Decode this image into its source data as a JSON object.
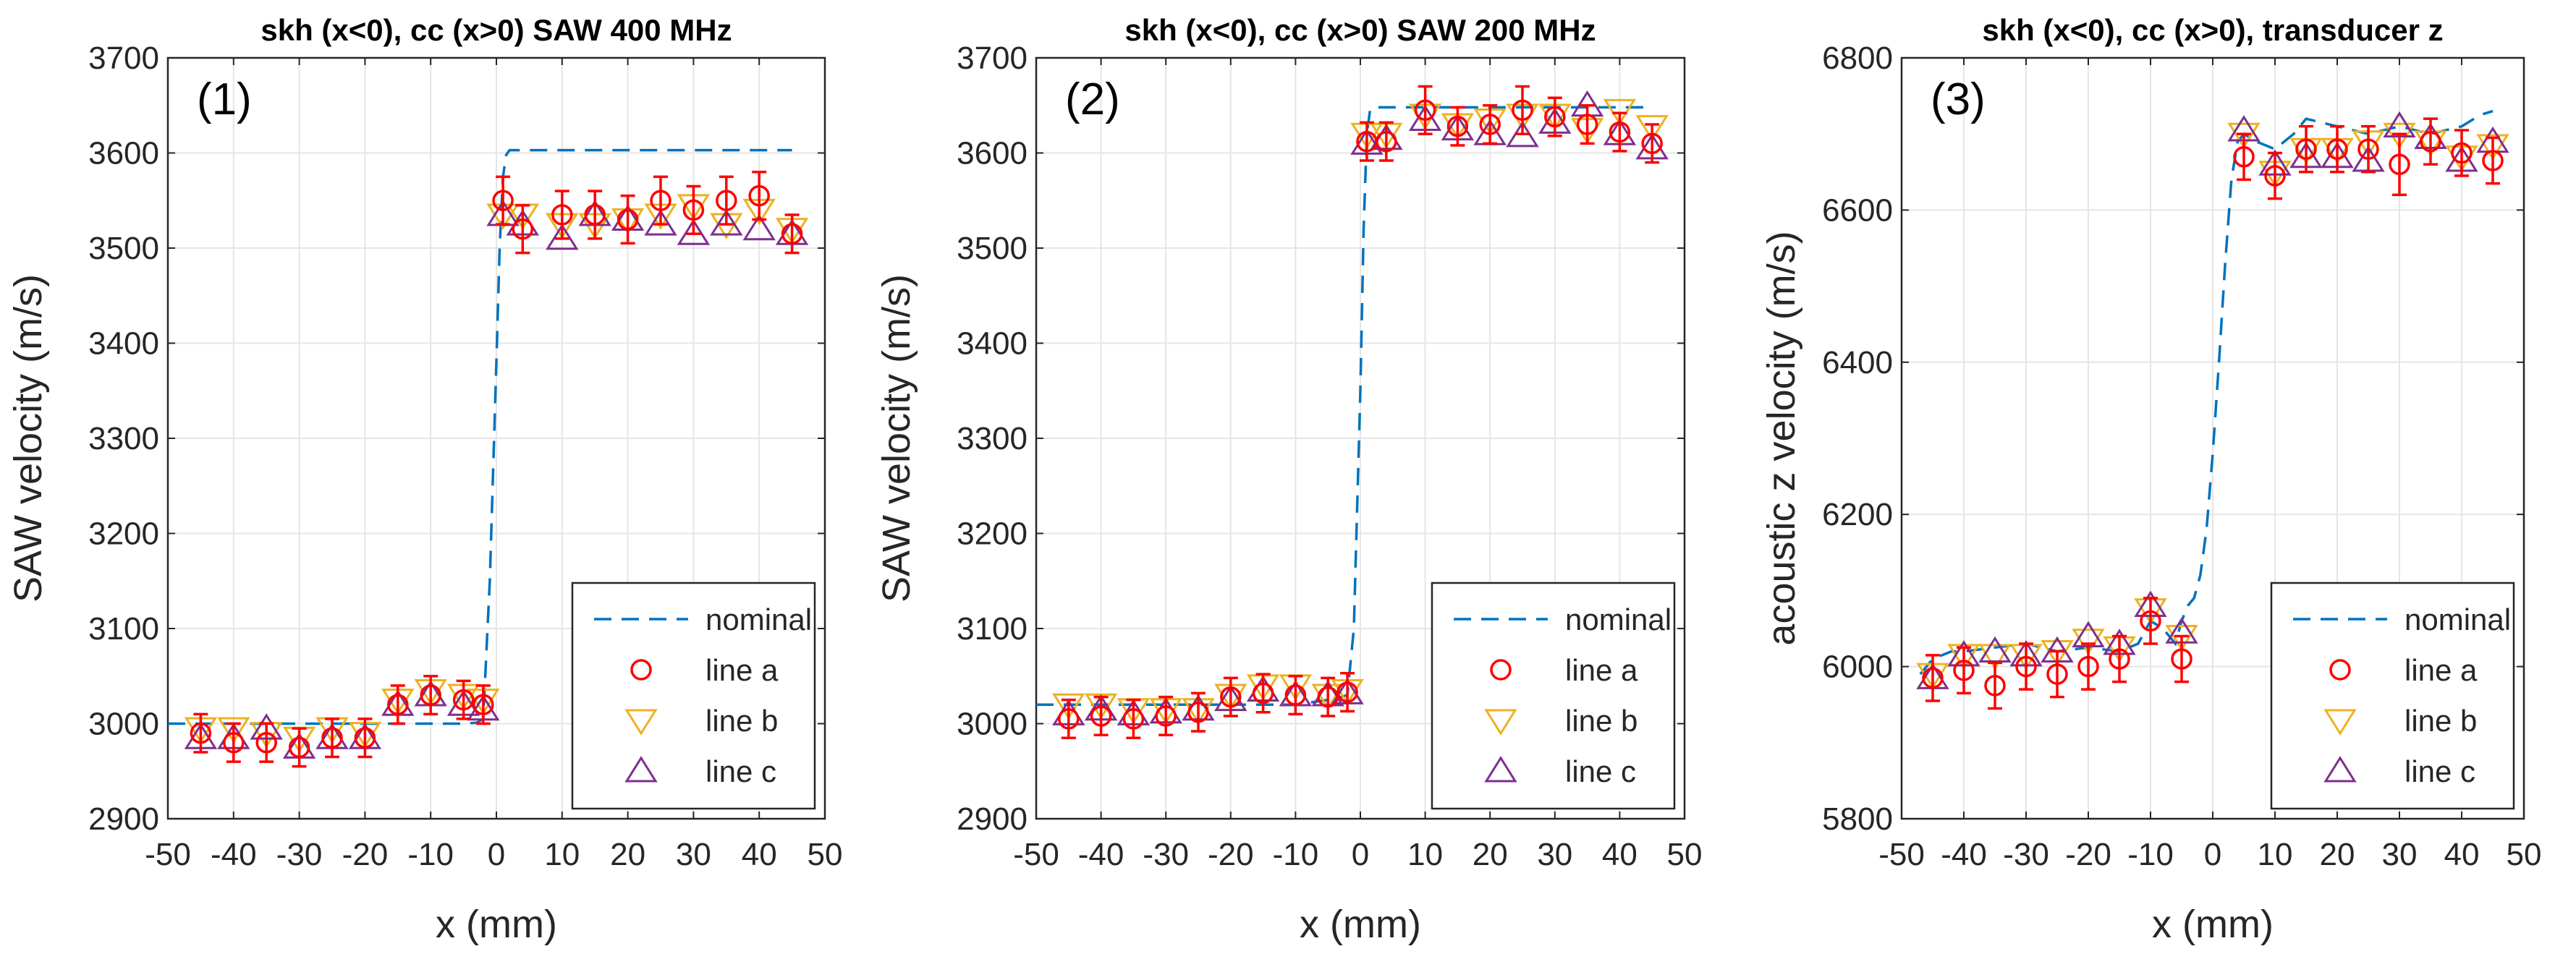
{
  "figure": {
    "panel_count": 3
  },
  "colors": {
    "nominal": "#0072BD",
    "line_a": "#FF0000",
    "line_b": "#EDB120",
    "line_c": "#7E2F8E",
    "errorbar": "#FF0000",
    "grid": "#E5E5E5",
    "axis": "#262626"
  },
  "chart_data": [
    {
      "type": "line",
      "panel_label": "(1)",
      "title": "skh (x<0), cc (x>0) SAW 400 MHz",
      "xlabel": "x (mm)",
      "ylabel": "SAW velocity (m/s)",
      "xlim": [
        -50,
        50
      ],
      "ylim": [
        2900,
        3700
      ],
      "xticks": [
        -50,
        -40,
        -30,
        -20,
        -10,
        0,
        10,
        20,
        30,
        40,
        50
      ],
      "yticks": [
        2900,
        3000,
        3100,
        3200,
        3300,
        3400,
        3500,
        3600,
        3700
      ],
      "xtick_labels": [
        "-50",
        "-40",
        "-30",
        "-20",
        "-10",
        "0",
        "10",
        "20",
        "30",
        "40",
        "50"
      ],
      "ytick_labels": [
        "2900",
        "3000",
        "3100",
        "3200",
        "3300",
        "3400",
        "3500",
        "3600",
        "3700"
      ],
      "grid": true,
      "legend": {
        "position": "bottom-right",
        "entries": [
          "nominal",
          "line a",
          "line b",
          "line c"
        ]
      },
      "series": [
        {
          "name": "nominal",
          "style": "dashed",
          "x": [
            -50,
            -45,
            -40,
            -35,
            -30,
            -25,
            -20,
            -15,
            -10,
            -5,
            -3,
            -2,
            -1,
            0,
            0.5,
            1,
            1.5,
            2,
            5,
            10,
            20,
            30,
            40,
            45
          ],
          "y": [
            3000,
            3000,
            3000,
            3000,
            3000,
            3000,
            3000,
            3000,
            3000,
            3000,
            3001,
            3005,
            3150,
            3380,
            3500,
            3575,
            3598,
            3603,
            3603,
            3603,
            3603,
            3603,
            3603,
            3603
          ]
        },
        {
          "name": "line a",
          "marker": "circle",
          "x": [
            -45,
            -40,
            -35,
            -30,
            -25,
            -20,
            -15,
            -10,
            -5,
            -2,
            1,
            4,
            10,
            15,
            20,
            25,
            30,
            35,
            40,
            45
          ],
          "y": [
            2990,
            2980,
            2980,
            2975,
            2985,
            2985,
            3020,
            3030,
            3025,
            3020,
            3550,
            3520,
            3535,
            3535,
            3530,
            3550,
            3540,
            3550,
            3555,
            3515
          ],
          "err": [
            20,
            20,
            20,
            20,
            20,
            20,
            20,
            20,
            20,
            20,
            25,
            25,
            25,
            25,
            25,
            25,
            25,
            25,
            25,
            20
          ]
        },
        {
          "name": "line b",
          "marker": "triangle-down",
          "x": [
            -45,
            -40,
            -35,
            -30,
            -25,
            -20,
            -15,
            -10,
            -5,
            -2,
            1,
            4,
            10,
            15,
            20,
            25,
            30,
            35,
            40,
            45
          ],
          "y": [
            2995,
            2995,
            2990,
            2985,
            2995,
            2990,
            3025,
            3035,
            3030,
            3025,
            3535,
            3535,
            3525,
            3525,
            3530,
            3535,
            3545,
            3525,
            3540,
            3520
          ]
        },
        {
          "name": "line c",
          "marker": "triangle-up",
          "x": [
            -45,
            -40,
            -35,
            -30,
            -25,
            -20,
            -15,
            -10,
            -5,
            -2,
            1,
            4,
            10,
            15,
            20,
            25,
            30,
            35,
            40,
            45
          ],
          "y": [
            2985,
            2985,
            2995,
            2975,
            2985,
            2985,
            3020,
            3030,
            3020,
            3015,
            3535,
            3525,
            3510,
            3535,
            3530,
            3525,
            3515,
            3525,
            3520,
            3515
          ]
        }
      ]
    },
    {
      "type": "line",
      "panel_label": "(2)",
      "title": "skh (x<0), cc (x>0) SAW 200 MHz",
      "xlabel": "x (mm)",
      "ylabel": "SAW velocity (m/s)",
      "xlim": [
        -50,
        50
      ],
      "ylim": [
        2900,
        3700
      ],
      "xticks": [
        -50,
        -40,
        -30,
        -20,
        -10,
        0,
        10,
        20,
        30,
        40,
        50
      ],
      "yticks": [
        2900,
        3000,
        3100,
        3200,
        3300,
        3400,
        3500,
        3600,
        3700
      ],
      "xtick_labels": [
        "-50",
        "-40",
        "-30",
        "-20",
        "-10",
        "0",
        "10",
        "20",
        "30",
        "40",
        "50"
      ],
      "ytick_labels": [
        "2900",
        "3000",
        "3100",
        "3200",
        "3300",
        "3400",
        "3500",
        "3600",
        "3700"
      ],
      "grid": true,
      "legend": {
        "position": "bottom-right",
        "entries": [
          "nominal",
          "line a",
          "line b",
          "line c"
        ]
      },
      "series": [
        {
          "name": "nominal",
          "style": "dashed",
          "x": [
            -50,
            -45,
            -40,
            -35,
            -30,
            -25,
            -20,
            -15,
            -10,
            -5,
            -3,
            -2,
            -1,
            0,
            0.5,
            1,
            1.5,
            2,
            5,
            10,
            20,
            30,
            40,
            45
          ],
          "y": [
            3020,
            3020,
            3020,
            3020,
            3020,
            3020,
            3020,
            3020,
            3020,
            3025,
            3028,
            3030,
            3100,
            3350,
            3520,
            3620,
            3645,
            3648,
            3648,
            3648,
            3648,
            3648,
            3648,
            3648
          ]
        },
        {
          "name": "line a",
          "marker": "circle",
          "x": [
            -45,
            -40,
            -35,
            -30,
            -25,
            -20,
            -15,
            -10,
            -5,
            -2,
            1,
            4,
            10,
            15,
            20,
            25,
            30,
            35,
            40,
            45
          ],
          "y": [
            3005,
            3008,
            3005,
            3008,
            3012,
            3028,
            3032,
            3030,
            3028,
            3033,
            3612,
            3612,
            3645,
            3628,
            3630,
            3645,
            3638,
            3630,
            3622,
            3610
          ],
          "err": [
            20,
            20,
            20,
            20,
            20,
            20,
            20,
            20,
            20,
            20,
            20,
            20,
            25,
            20,
            20,
            25,
            20,
            20,
            20,
            20
          ]
        },
        {
          "name": "line b",
          "marker": "triangle-down",
          "x": [
            -45,
            -40,
            -35,
            -30,
            -25,
            -20,
            -15,
            -10,
            -5,
            -2,
            1,
            4,
            10,
            15,
            20,
            25,
            30,
            35,
            40,
            45
          ],
          "y": [
            3020,
            3020,
            3015,
            3015,
            3015,
            3030,
            3040,
            3040,
            3030,
            3035,
            3620,
            3620,
            3640,
            3630,
            3635,
            3640,
            3640,
            3625,
            3645,
            3628
          ]
        },
        {
          "name": "line c",
          "marker": "triangle-up",
          "x": [
            -45,
            -40,
            -35,
            -30,
            -25,
            -20,
            -15,
            -10,
            -5,
            -2,
            1,
            4,
            10,
            15,
            20,
            25,
            30,
            35,
            40,
            45
          ],
          "y": [
            3010,
            3015,
            3010,
            3012,
            3015,
            3025,
            3035,
            3030,
            3030,
            3032,
            3610,
            3615,
            3635,
            3625,
            3620,
            3618,
            3632,
            3650,
            3620,
            3605
          ]
        }
      ]
    },
    {
      "type": "line",
      "panel_label": "(3)",
      "title": "skh (x<0), cc (x>0), transducer z",
      "xlabel": "x (mm)",
      "ylabel": "acoustic z velocity (m/s)",
      "xlim": [
        -50,
        50
      ],
      "ylim": [
        5800,
        6800
      ],
      "xticks": [
        -50,
        -40,
        -30,
        -20,
        -10,
        0,
        10,
        20,
        30,
        40,
        50
      ],
      "yticks": [
        5800,
        6000,
        6200,
        6400,
        6600,
        6800
      ],
      "xtick_labels": [
        "-50",
        "-40",
        "-30",
        "-20",
        "-10",
        "0",
        "10",
        "20",
        "30",
        "40",
        "50"
      ],
      "ytick_labels": [
        "5800",
        "6000",
        "6200",
        "6400",
        "6600",
        "6800"
      ],
      "grid": true,
      "legend": {
        "position": "bottom-right",
        "entries": [
          "nominal",
          "line a",
          "line b",
          "line c"
        ]
      },
      "series": [
        {
          "name": "nominal",
          "style": "dashed",
          "x": [
            -47,
            -45,
            -42,
            -40,
            -35,
            -30,
            -25,
            -20,
            -15,
            -12,
            -10,
            -8,
            -6,
            -5,
            -4,
            -3,
            -2,
            -1,
            0,
            1,
            2,
            3,
            4,
            5,
            7,
            10,
            13,
            15,
            20,
            25,
            30,
            35,
            40,
            43,
            45
          ],
          "y": [
            5990,
            6010,
            6020,
            6020,
            6025,
            6030,
            6020,
            6025,
            6020,
            6030,
            6060,
            6050,
            6030,
            6060,
            6080,
            6090,
            6120,
            6180,
            6280,
            6400,
            6530,
            6640,
            6690,
            6700,
            6690,
            6680,
            6700,
            6720,
            6710,
            6700,
            6710,
            6700,
            6710,
            6725,
            6730
          ]
        },
        {
          "name": "line a",
          "marker": "circle",
          "x": [
            -45,
            -40,
            -35,
            -30,
            -25,
            -20,
            -15,
            -10,
            -5,
            5,
            10,
            15,
            20,
            25,
            30,
            35,
            40,
            45
          ],
          "y": [
            5985,
            5995,
            5975,
            6000,
            5990,
            6000,
            6010,
            6060,
            6010,
            6670,
            6645,
            6680,
            6680,
            6680,
            6660,
            6690,
            6675,
            6665
          ],
          "err": [
            30,
            30,
            30,
            30,
            30,
            30,
            30,
            30,
            30,
            30,
            30,
            30,
            30,
            30,
            40,
            30,
            30,
            30
          ]
        },
        {
          "name": "line b",
          "marker": "triangle-down",
          "x": [
            -45,
            -40,
            -35,
            -30,
            -25,
            -20,
            -15,
            -10,
            -5,
            5,
            10,
            15,
            20,
            25,
            30,
            35,
            40,
            45
          ],
          "y": [
            5990,
            6015,
            6015,
            6015,
            6020,
            6035,
            6025,
            6075,
            6040,
            6700,
            6650,
            6680,
            6680,
            6690,
            6700,
            6690,
            6670,
            6685
          ]
        },
        {
          "name": "line c",
          "marker": "triangle-up",
          "x": [
            -45,
            -40,
            -35,
            -30,
            -25,
            -20,
            -15,
            -10,
            -5,
            5,
            10,
            15,
            20,
            25,
            30,
            35,
            40,
            45
          ],
          "y": [
            5985,
            6015,
            6020,
            6015,
            6020,
            6040,
            6030,
            6080,
            6045,
            6705,
            6660,
            6670,
            6670,
            6665,
            6710,
            6695,
            6665,
            6690
          ]
        }
      ]
    }
  ]
}
